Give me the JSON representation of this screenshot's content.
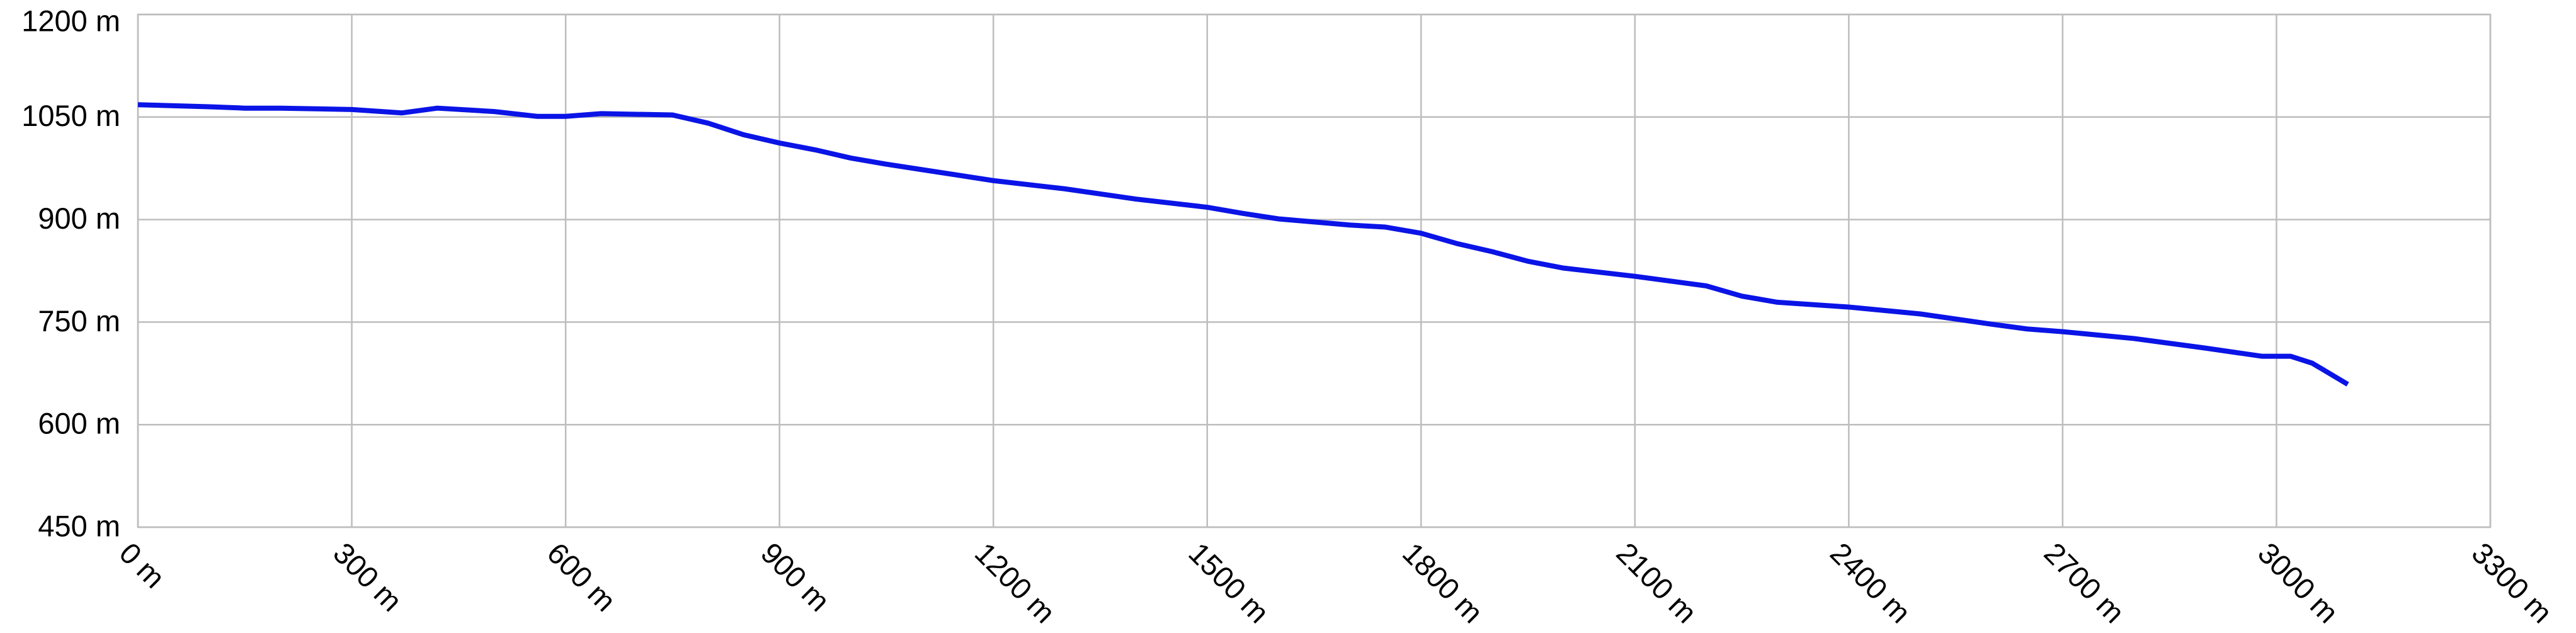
{
  "chart_data": {
    "type": "line",
    "x": [
      0,
      100,
      150,
      200,
      300,
      370,
      420,
      500,
      560,
      600,
      650,
      750,
      800,
      850,
      900,
      950,
      1000,
      1050,
      1100,
      1200,
      1300,
      1400,
      1500,
      1550,
      1600,
      1700,
      1750,
      1800,
      1850,
      1900,
      1950,
      2000,
      2100,
      2200,
      2250,
      2300,
      2400,
      2500,
      2600,
      2650,
      2700,
      2800,
      2900,
      2980,
      3020,
      3050,
      3100
    ],
    "series": [
      {
        "color": "#0a14e6",
        "values": [
          1068,
          1065,
          1063,
          1063,
          1061,
          1056,
          1063,
          1058,
          1051,
          1051,
          1055,
          1053,
          1041,
          1024,
          1012,
          1002,
          990,
          981,
          973,
          957,
          945,
          930,
          918,
          909,
          901,
          892,
          889,
          880,
          865,
          853,
          839,
          829,
          817,
          803,
          788,
          779,
          772,
          762,
          747,
          740,
          736,
          726,
          712,
          700,
          700,
          690,
          659
        ]
      }
    ],
    "xlim": [
      0,
      3300
    ],
    "xticks": [
      {
        "value": 0,
        "label": "0 m"
      },
      {
        "value": 300,
        "label": "300 m"
      },
      {
        "value": 600,
        "label": "600 m"
      },
      {
        "value": 900,
        "label": "900 m"
      },
      {
        "value": 1200,
        "label": "1200 m"
      },
      {
        "value": 1500,
        "label": "1500 m"
      },
      {
        "value": 1800,
        "label": "1800 m"
      },
      {
        "value": 2100,
        "label": "2100 m"
      },
      {
        "value": 2400,
        "label": "2400 m"
      },
      {
        "value": 2700,
        "label": "2700 m"
      },
      {
        "value": 3000,
        "label": "3000 m"
      },
      {
        "value": 3300,
        "label": "3300 m"
      }
    ],
    "ylim": [
      450,
      1200
    ],
    "yticks": [
      {
        "value": 450,
        "label": "450 m"
      },
      {
        "value": 600,
        "label": "600 m"
      },
      {
        "value": 750,
        "label": "750 m"
      },
      {
        "value": 900,
        "label": "900 m"
      },
      {
        "value": 1050,
        "label": "1050 m"
      },
      {
        "value": 1200,
        "label": "1200 m"
      }
    ],
    "grid": true
  }
}
